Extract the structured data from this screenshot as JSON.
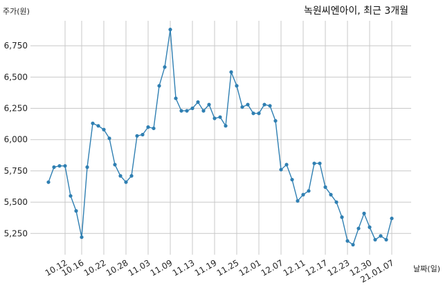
{
  "chart_data": {
    "type": "line",
    "title": "녹원씨엔아이, 최근 3개월",
    "ylabel": "주가(원)",
    "xlabel": "날짜(일)",
    "ylim": [
      5080,
      6950
    ],
    "yticks": [
      5250,
      5500,
      5750,
      6000,
      6250,
      6500,
      6750
    ],
    "ytick_labels": [
      "5,250",
      "5,500",
      "5,750",
      "6,000",
      "6,250",
      "6,500",
      "6,750"
    ],
    "xtick_labels": [
      "10.12",
      "10.16",
      "10.22",
      "10.28",
      "11.03",
      "11.09",
      "11.13",
      "11.19",
      "11.25",
      "12.01",
      "12.07",
      "12.11",
      "12.17",
      "12.23",
      "12.30",
      "21.01.07"
    ],
    "xtick_indices": [
      3,
      6,
      10,
      14,
      18,
      22,
      26,
      30,
      34,
      38,
      42,
      46,
      50,
      54,
      58,
      62
    ],
    "grid": true,
    "color": "#2f7fb2",
    "series": [
      {
        "values": [
          5660,
          5780,
          5790,
          5790,
          5550,
          5430,
          5220,
          5780,
          6130,
          6110,
          6080,
          6010,
          5800,
          5710,
          5660,
          5710,
          6030,
          6040,
          6100,
          6090,
          6430,
          6580,
          6880,
          6330,
          6230,
          6230,
          6250,
          6300,
          6230,
          6280,
          6170,
          6180,
          6110,
          6540,
          6430,
          6260,
          6280,
          6210,
          6210,
          6280,
          6270,
          6150,
          5760,
          5800,
          5680,
          5510,
          5560,
          5590,
          5810,
          5810,
          5620,
          5560,
          5500,
          5380,
          5190,
          5160,
          5290,
          5410,
          5300,
          5200,
          5230,
          5200,
          5370
        ]
      }
    ]
  }
}
